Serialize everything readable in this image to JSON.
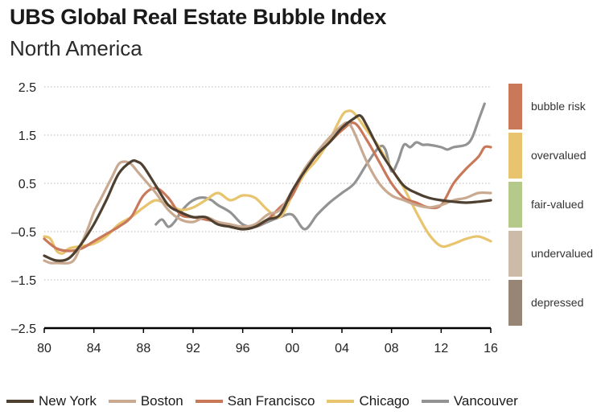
{
  "header": {
    "title": "UBS Global Real Estate Bubble Index",
    "subtitle": "North America"
  },
  "bands": [
    {
      "label": "bubble risk",
      "color": "#c9785a"
    },
    {
      "label": "overvalued",
      "color": "#e7c46d"
    },
    {
      "label": "fair-valued",
      "color": "#b4c98a"
    },
    {
      "label": "undervalued",
      "color": "#cbbba8"
    },
    {
      "label": "depressed",
      "color": "#978675"
    }
  ],
  "chart_data": {
    "type": "line",
    "title": "UBS Global Real Estate Bubble Index",
    "subtitle": "North America",
    "xlabel": "",
    "ylabel": "",
    "xlim": [
      1980,
      2016
    ],
    "ylim": [
      -2.5,
      2.5
    ],
    "x_ticks": [
      1980,
      1984,
      1988,
      1992,
      1996,
      2000,
      2004,
      2008,
      2012,
      2016
    ],
    "x_tick_labels": [
      "80",
      "84",
      "88",
      "92",
      "96",
      "00",
      "04",
      "08",
      "12",
      "16"
    ],
    "y_ticks": [
      2.5,
      1.5,
      0.5,
      -0.5,
      -1.5,
      -2.5
    ],
    "y_tick_labels": [
      "2.5",
      "1.5",
      "0.5",
      "–0.5",
      "–1.5",
      "–2.5"
    ],
    "series": [
      {
        "name": "Vancouver",
        "color": "#939393",
        "x": [
          1989,
          1989.5,
          1990,
          1990.5,
          1991,
          1991.5,
          1992,
          1992.5,
          1993,
          1993.5,
          1994,
          1995,
          1996,
          1997,
          1998,
          1999,
          2000,
          2001,
          2002,
          2003,
          2004,
          2005,
          2006,
          2007,
          2007.5,
          2008,
          2008.5,
          2009,
          2009.5,
          2010,
          2010.5,
          2011,
          2012,
          2012.5,
          2013,
          2014,
          2014.5,
          2015,
          2015.5
        ],
        "y": [
          -0.35,
          -0.25,
          -0.4,
          -0.3,
          -0.1,
          0.05,
          0.15,
          0.2,
          0.2,
          0.15,
          0.05,
          -0.1,
          -0.35,
          -0.4,
          -0.3,
          -0.2,
          -0.15,
          -0.45,
          -0.15,
          0.1,
          0.3,
          0.5,
          0.9,
          1.25,
          1.2,
          0.75,
          0.95,
          1.3,
          1.25,
          1.35,
          1.3,
          1.3,
          1.25,
          1.2,
          1.25,
          1.3,
          1.45,
          1.8,
          2.15
        ]
      },
      {
        "name": "Chicago",
        "color": "#e7c46d",
        "x": [
          1980,
          1980.5,
          1981,
          1981.5,
          1982,
          1983,
          1984,
          1985,
          1986,
          1987,
          1988,
          1989,
          1990,
          1991,
          1992,
          1993,
          1994,
          1995,
          1996,
          1997,
          1998,
          1999,
          2000,
          2001,
          2002,
          2003,
          2004,
          2004.5,
          2005,
          2006,
          2007,
          2008,
          2009,
          2010,
          2011,
          2012,
          2013,
          2014,
          2015,
          2016
        ],
        "y": [
          -0.6,
          -0.65,
          -0.9,
          -0.95,
          -0.85,
          -0.8,
          -0.75,
          -0.6,
          -0.35,
          -0.2,
          0.0,
          0.15,
          0.05,
          -0.05,
          0.0,
          0.15,
          0.3,
          0.15,
          0.25,
          0.2,
          -0.05,
          -0.2,
          0.25,
          0.7,
          1.0,
          1.4,
          1.9,
          2.0,
          1.95,
          1.6,
          1.25,
          0.8,
          0.4,
          -0.1,
          -0.55,
          -0.8,
          -0.75,
          -0.65,
          -0.6,
          -0.7
        ]
      },
      {
        "name": "San Francisco",
        "color": "#c9785a",
        "x": [
          1980,
          1981,
          1982,
          1983,
          1984,
          1985,
          1986,
          1987,
          1988,
          1989,
          1990,
          1991,
          1992,
          1993,
          1994,
          1995,
          1996,
          1997,
          1998,
          1999,
          2000,
          2001,
          2002,
          2003,
          2004,
          2005,
          2006,
          2007,
          2008,
          2009,
          2010,
          2011,
          2012,
          2013,
          2014,
          2015,
          2015.5,
          2016
        ],
        "y": [
          -0.65,
          -0.85,
          -0.9,
          -0.85,
          -0.7,
          -0.55,
          -0.4,
          -0.2,
          0.25,
          0.4,
          0.2,
          -0.15,
          -0.2,
          -0.25,
          -0.3,
          -0.4,
          -0.45,
          -0.4,
          -0.25,
          0.0,
          0.25,
          0.8,
          1.1,
          1.35,
          1.6,
          1.75,
          1.4,
          0.95,
          0.5,
          0.2,
          0.1,
          0.0,
          0.05,
          0.5,
          0.8,
          1.05,
          1.25,
          1.25
        ]
      },
      {
        "name": "Boston",
        "color": "#c9aa91",
        "x": [
          1980,
          1980.5,
          1981,
          1982,
          1982.5,
          1983,
          1983.5,
          1984,
          1984.5,
          1985,
          1985.5,
          1986,
          1986.5,
          1987,
          1987.5,
          1988,
          1989,
          1990,
          1991,
          1992,
          1993,
          1994,
          1995,
          1996,
          1997,
          1998,
          1999,
          2000,
          2001,
          2002,
          2003,
          2004,
          2004.5,
          2005,
          2006,
          2007,
          2008,
          2009,
          2010,
          2011,
          2012,
          2013,
          2014,
          2015,
          2016
        ],
        "y": [
          -1.1,
          -1.15,
          -1.15,
          -1.15,
          -1.05,
          -0.75,
          -0.45,
          -0.1,
          0.15,
          0.4,
          0.65,
          0.9,
          0.95,
          0.9,
          0.75,
          0.6,
          0.3,
          -0.05,
          -0.25,
          -0.3,
          -0.2,
          -0.3,
          -0.35,
          -0.4,
          -0.35,
          -0.15,
          -0.05,
          0.35,
          0.8,
          1.15,
          1.45,
          1.7,
          1.75,
          1.55,
          0.95,
          0.5,
          0.25,
          0.15,
          0.05,
          0.0,
          0.05,
          0.15,
          0.2,
          0.3,
          0.3
        ]
      },
      {
        "name": "New York",
        "color": "#4e4031",
        "x": [
          1980,
          1981,
          1982,
          1983,
          1984,
          1985,
          1986,
          1987,
          1987.5,
          1988,
          1989,
          1990,
          1991,
          1992,
          1993,
          1994,
          1995,
          1996,
          1997,
          1998,
          1999,
          2000,
          2001,
          2002,
          2003,
          2004,
          2005,
          2005.5,
          2006,
          2007,
          2008,
          2009,
          2010,
          2011,
          2012,
          2013,
          2014,
          2015,
          2016
        ],
        "y": [
          -1.0,
          -1.1,
          -1.05,
          -0.75,
          -0.35,
          0.15,
          0.7,
          0.95,
          0.95,
          0.85,
          0.45,
          0.05,
          -0.1,
          -0.2,
          -0.2,
          -0.35,
          -0.4,
          -0.45,
          -0.4,
          -0.25,
          -0.15,
          0.35,
          0.75,
          1.1,
          1.35,
          1.65,
          1.85,
          1.9,
          1.7,
          1.2,
          0.8,
          0.45,
          0.3,
          0.2,
          0.15,
          0.12,
          0.1,
          0.12,
          0.15
        ]
      }
    ],
    "legend_order": [
      "New York",
      "Boston",
      "San Francisco",
      "Chicago",
      "Vancouver"
    ],
    "legend_position": "bottom"
  }
}
